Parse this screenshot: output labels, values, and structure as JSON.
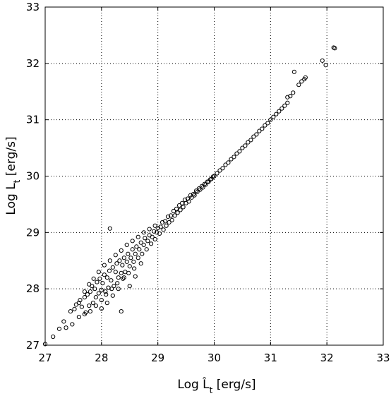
{
  "chart_data": {
    "type": "scatter",
    "title": "",
    "xlabel": "Log L̂",
    "xlabel_subscript": "t",
    "xlabel_unit": " [erg/s]",
    "ylabel": "Log L",
    "ylabel_subscript": "t",
    "ylabel_unit": " [erg/s]",
    "xlim": [
      27,
      33
    ],
    "ylim": [
      27,
      33
    ],
    "xticks": [
      27,
      28,
      29,
      30,
      31,
      32,
      33
    ],
    "yticks": [
      27,
      28,
      29,
      30,
      31,
      32,
      33
    ],
    "grid": true,
    "grid_style": "dotted",
    "marker": "open-circle",
    "series": [
      {
        "points": [
          [
            27.0,
            27.02
          ],
          [
            27.14,
            27.15
          ],
          [
            27.25,
            27.29
          ],
          [
            27.33,
            27.42
          ],
          [
            27.37,
            27.31
          ],
          [
            27.45,
            27.6
          ],
          [
            27.48,
            27.37
          ],
          [
            27.52,
            27.64
          ],
          [
            27.55,
            27.72
          ],
          [
            27.6,
            27.5
          ],
          [
            27.62,
            27.8
          ],
          [
            27.65,
            27.68
          ],
          [
            27.7,
            27.85
          ],
          [
            27.72,
            27.58
          ],
          [
            27.75,
            27.9
          ],
          [
            27.78,
            27.7
          ],
          [
            27.8,
            27.95
          ],
          [
            27.83,
            28.05
          ],
          [
            27.85,
            27.75
          ],
          [
            27.88,
            28.0
          ],
          [
            27.9,
            27.85
          ],
          [
            27.92,
            28.12
          ],
          [
            27.95,
            27.92
          ],
          [
            27.97,
            28.18
          ],
          [
            28.0,
            27.98
          ],
          [
            28.02,
            28.1
          ],
          [
            28.05,
            28.25
          ],
          [
            28.07,
            27.95
          ],
          [
            28.1,
            28.2
          ],
          [
            28.12,
            28.02
          ],
          [
            28.14,
            28.32
          ],
          [
            28.17,
            28.15
          ],
          [
            28.2,
            28.38
          ],
          [
            28.22,
            28.05
          ],
          [
            28.25,
            28.3
          ],
          [
            28.27,
            28.45
          ],
          [
            28.3,
            28.2
          ],
          [
            28.32,
            28.5
          ],
          [
            28.35,
            28.28
          ],
          [
            28.37,
            28.42
          ],
          [
            28.4,
            28.55
          ],
          [
            28.42,
            28.3
          ],
          [
            28.45,
            28.48
          ],
          [
            28.47,
            28.62
          ],
          [
            28.5,
            28.4
          ],
          [
            28.52,
            28.55
          ],
          [
            28.55,
            28.7
          ],
          [
            28.57,
            28.48
          ],
          [
            28.6,
            28.62
          ],
          [
            28.62,
            28.75
          ],
          [
            28.65,
            28.55
          ],
          [
            28.67,
            28.7
          ],
          [
            28.7,
            28.82
          ],
          [
            28.72,
            28.62
          ],
          [
            28.75,
            28.78
          ],
          [
            28.77,
            28.9
          ],
          [
            28.8,
            28.7
          ],
          [
            28.82,
            28.85
          ],
          [
            28.85,
            28.95
          ],
          [
            28.88,
            28.8
          ],
          [
            28.9,
            28.92
          ],
          [
            28.93,
            29.02
          ],
          [
            28.95,
            28.88
          ],
          [
            28.98,
            29.0
          ],
          [
            29.0,
            29.08
          ],
          [
            29.03,
            28.98
          ],
          [
            29.05,
            29.1
          ],
          [
            29.08,
            29.18
          ],
          [
            29.1,
            29.05
          ],
          [
            29.13,
            29.2
          ],
          [
            29.15,
            29.12
          ],
          [
            29.18,
            29.28
          ],
          [
            29.2,
            29.18
          ],
          [
            29.23,
            29.3
          ],
          [
            29.25,
            29.22
          ],
          [
            29.28,
            29.38
          ],
          [
            29.3,
            29.3
          ],
          [
            29.33,
            29.42
          ],
          [
            29.35,
            29.35
          ],
          [
            29.38,
            29.48
          ],
          [
            29.4,
            29.4
          ],
          [
            29.43,
            29.52
          ],
          [
            29.45,
            29.45
          ],
          [
            29.48,
            29.58
          ],
          [
            29.5,
            29.52
          ],
          [
            29.53,
            29.6
          ],
          [
            29.55,
            29.55
          ],
          [
            29.58,
            29.66
          ],
          [
            29.6,
            29.62
          ],
          [
            29.63,
            29.68
          ],
          [
            29.65,
            29.66
          ],
          [
            29.68,
            29.74
          ],
          [
            29.7,
            29.72
          ],
          [
            29.73,
            29.78
          ],
          [
            29.75,
            29.76
          ],
          [
            29.78,
            29.82
          ],
          [
            29.8,
            29.8
          ],
          [
            29.83,
            29.86
          ],
          [
            29.85,
            29.85
          ],
          [
            29.88,
            29.9
          ],
          [
            29.9,
            29.9
          ],
          [
            29.93,
            29.94
          ],
          [
            29.95,
            29.95
          ],
          [
            29.98,
            29.99
          ],
          [
            30.0,
            30.0
          ],
          [
            30.05,
            30.05
          ],
          [
            30.1,
            30.1
          ],
          [
            30.15,
            30.14
          ],
          [
            30.2,
            30.2
          ],
          [
            30.25,
            30.24
          ],
          [
            30.3,
            30.3
          ],
          [
            30.35,
            30.34
          ],
          [
            30.4,
            30.4
          ],
          [
            30.45,
            30.44
          ],
          [
            30.5,
            30.5
          ],
          [
            30.55,
            30.54
          ],
          [
            30.6,
            30.6
          ],
          [
            30.65,
            30.64
          ],
          [
            30.7,
            30.7
          ],
          [
            30.75,
            30.74
          ],
          [
            30.8,
            30.8
          ],
          [
            30.85,
            30.84
          ],
          [
            30.9,
            30.9
          ],
          [
            30.95,
            30.94
          ],
          [
            31.0,
            31.0
          ],
          [
            31.05,
            31.05
          ],
          [
            31.1,
            31.1
          ],
          [
            31.15,
            31.15
          ],
          [
            31.2,
            31.2
          ],
          [
            31.25,
            31.25
          ],
          [
            31.3,
            31.3
          ],
          [
            31.3,
            31.4
          ],
          [
            31.35,
            31.42
          ],
          [
            31.4,
            31.48
          ],
          [
            31.42,
            31.85
          ],
          [
            31.5,
            31.62
          ],
          [
            31.55,
            31.68
          ],
          [
            31.6,
            31.72
          ],
          [
            31.62,
            31.75
          ],
          [
            31.92,
            32.05
          ],
          [
            31.98,
            31.97
          ],
          [
            32.12,
            32.28
          ],
          [
            32.14,
            32.27
          ],
          [
            28.15,
            29.07
          ],
          [
            28.35,
            27.6
          ],
          [
            28.5,
            28.05
          ],
          [
            28.6,
            28.22
          ],
          [
            28.7,
            28.45
          ],
          [
            27.7,
            27.55
          ],
          [
            27.8,
            27.6
          ],
          [
            27.9,
            27.7
          ],
          [
            28.0,
            27.8
          ],
          [
            28.08,
            27.9
          ],
          [
            28.18,
            28.0
          ],
          [
            28.28,
            28.1
          ],
          [
            28.38,
            28.18
          ],
          [
            28.48,
            28.28
          ],
          [
            28.58,
            28.36
          ],
          [
            27.6,
            27.75
          ],
          [
            27.7,
            27.95
          ],
          [
            27.78,
            28.08
          ],
          [
            27.86,
            28.18
          ],
          [
            27.95,
            28.3
          ],
          [
            28.05,
            28.42
          ],
          [
            28.15,
            28.5
          ],
          [
            28.25,
            28.6
          ],
          [
            28.35,
            28.68
          ],
          [
            28.45,
            28.78
          ],
          [
            28.55,
            28.85
          ],
          [
            28.65,
            28.92
          ],
          [
            28.75,
            29.0
          ],
          [
            28.85,
            29.06
          ],
          [
            28.95,
            29.12
          ],
          [
            28.4,
            28.2
          ],
          [
            28.3,
            28.0
          ],
          [
            28.2,
            27.88
          ],
          [
            28.1,
            27.75
          ],
          [
            28.0,
            27.65
          ]
        ]
      }
    ]
  }
}
